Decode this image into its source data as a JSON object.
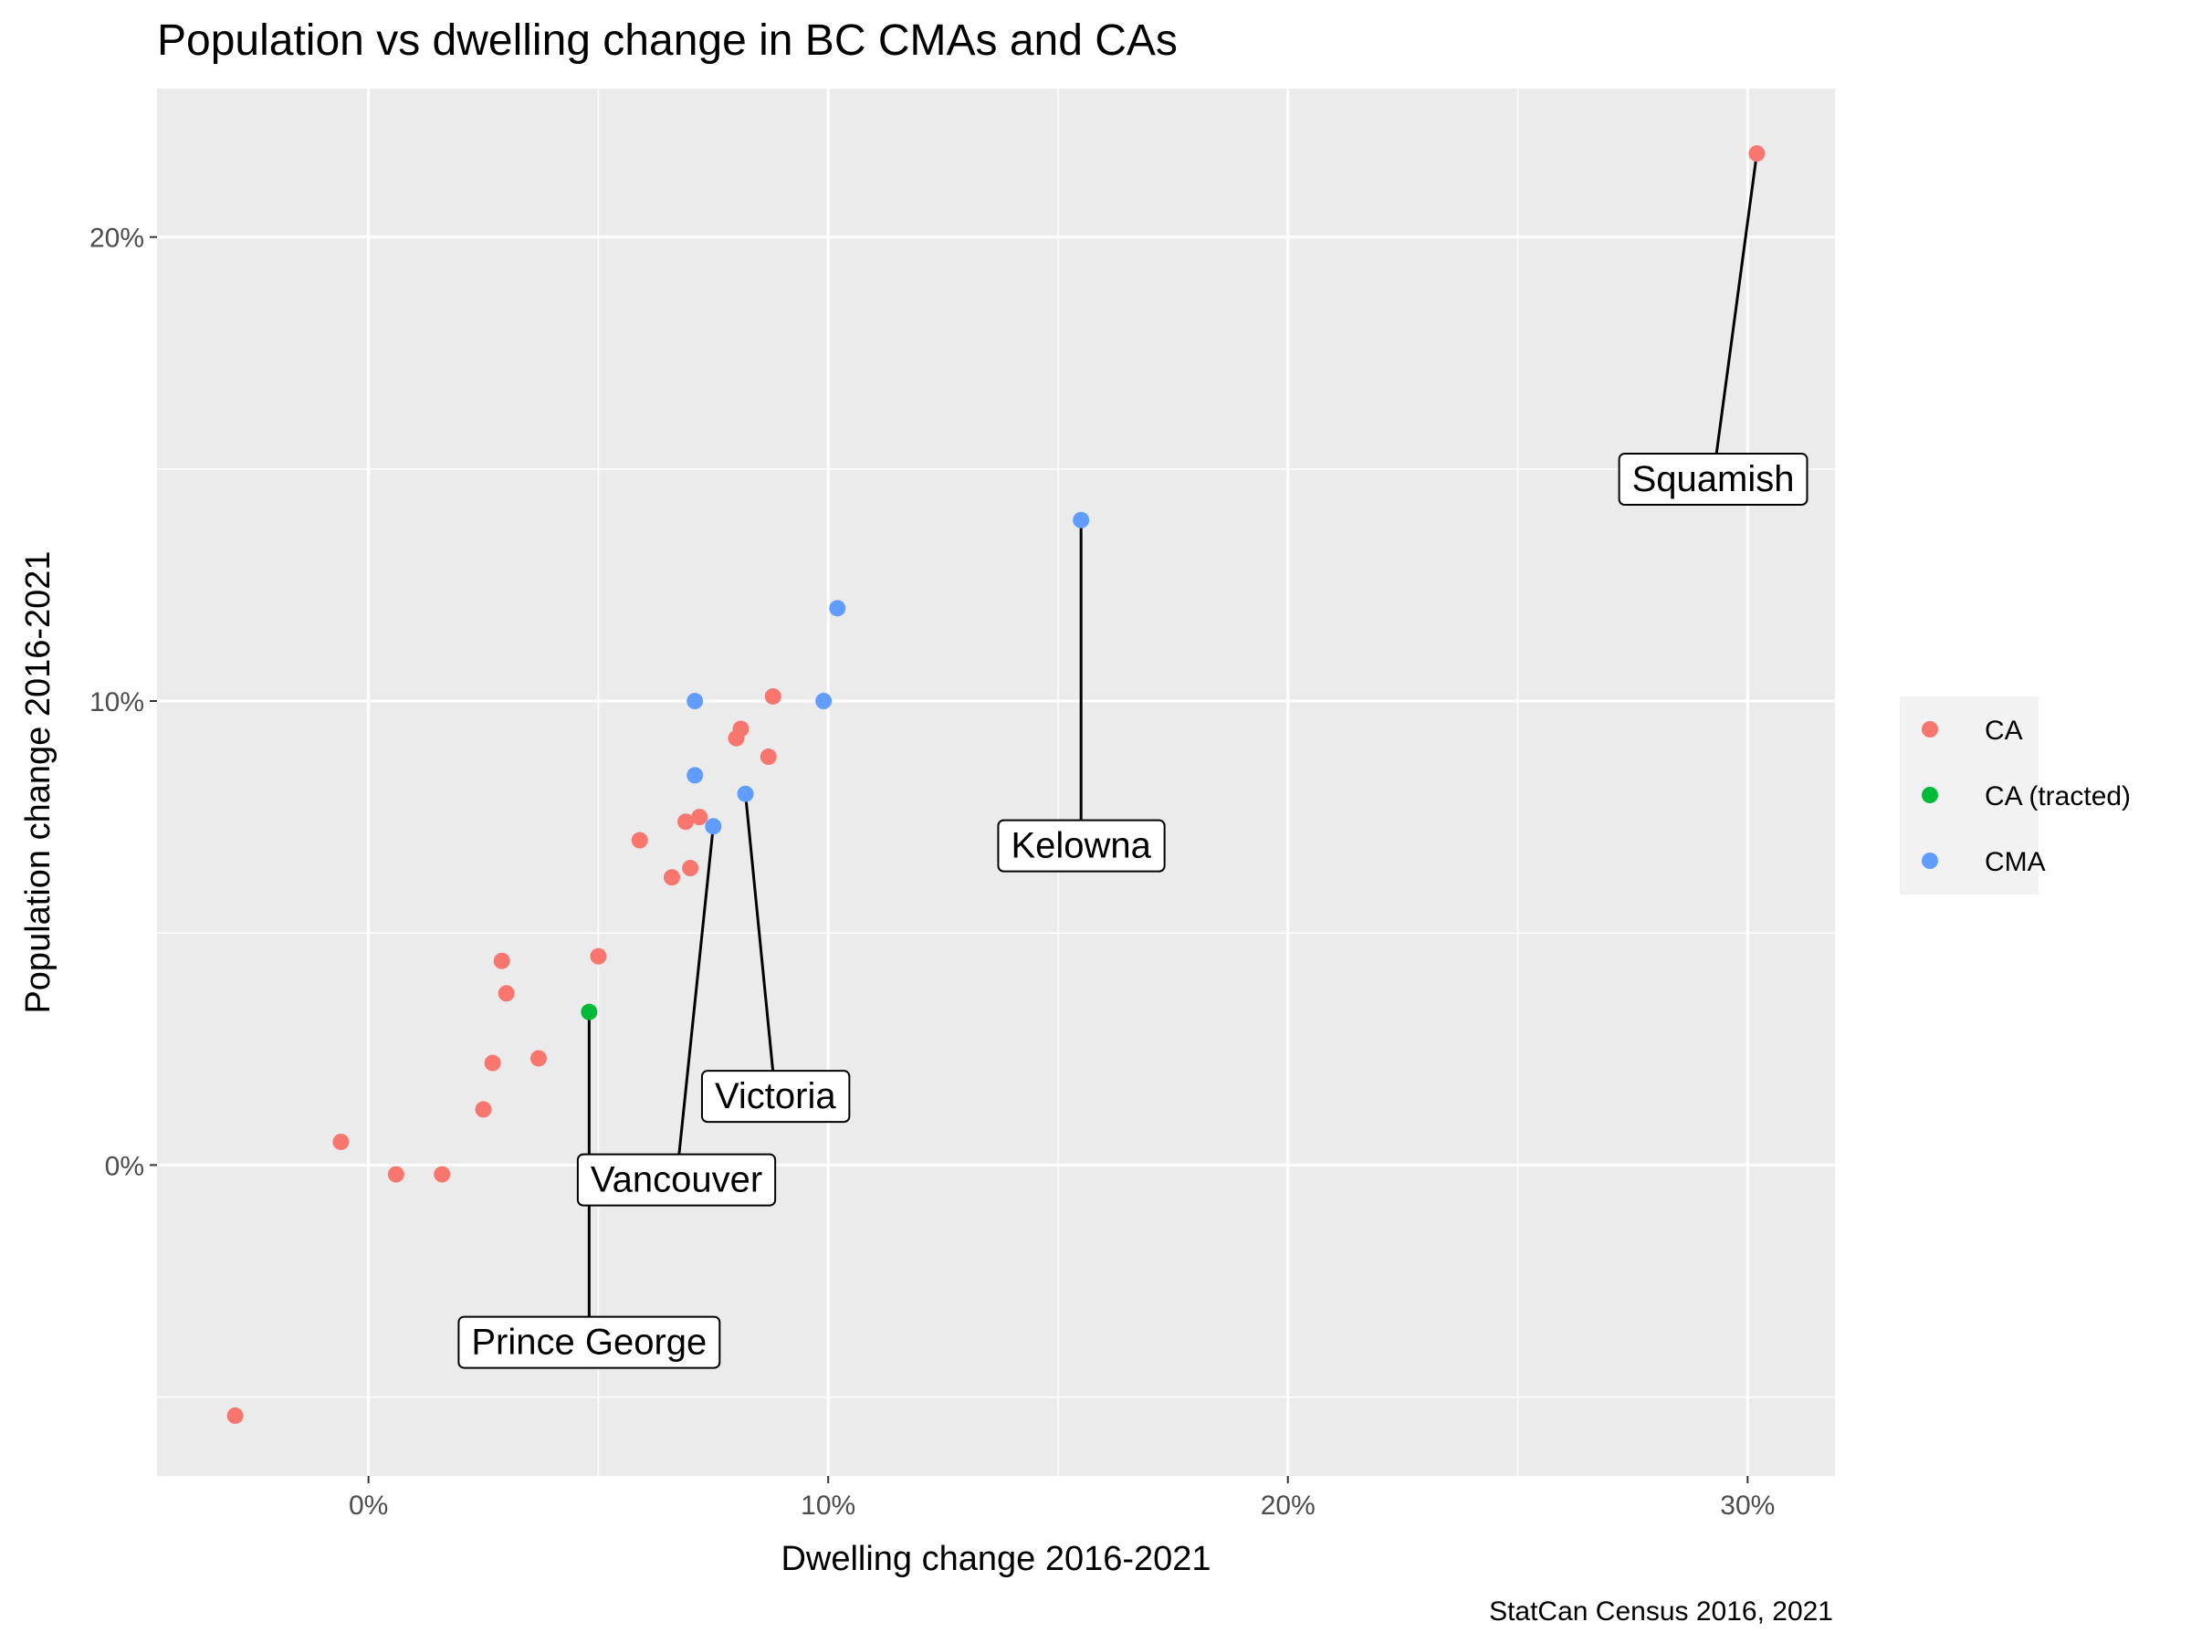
{
  "chart_data": {
    "type": "scatter",
    "title": "Population vs dwelling change in BC CMAs and CAs",
    "xlabel": "Dwelling change 2016-2021",
    "ylabel": "Population change 2016-2021",
    "caption": "StatCan Census 2016, 2021",
    "xlim": [
      -0.046,
      0.319
    ],
    "ylim": [
      -0.067,
      0.232
    ],
    "x_ticks": [
      {
        "value": 0.0,
        "label": "0%"
      },
      {
        "value": 0.1,
        "label": "10%"
      },
      {
        "value": 0.2,
        "label": "20%"
      },
      {
        "value": 0.3,
        "label": "30%"
      }
    ],
    "y_ticks": [
      {
        "value": 0.0,
        "label": "0%"
      },
      {
        "value": 0.1,
        "label": "10%"
      },
      {
        "value": 0.2,
        "label": "20%"
      }
    ],
    "grid": true,
    "legend_position": "right",
    "colors": {
      "panel": "#ebebeb",
      "grid": "#ffffff",
      "CA": "#f8766d",
      "CA (tracted)": "#00ba38",
      "CMA": "#619cff"
    },
    "series": [
      {
        "name": "CA",
        "points": [
          [
            -0.029,
            -0.054
          ],
          [
            -0.006,
            0.005
          ],
          [
            0.006,
            -0.002
          ],
          [
            0.016,
            -0.002
          ],
          [
            0.025,
            0.012
          ],
          [
            0.027,
            0.022
          ],
          [
            0.029,
            0.044
          ],
          [
            0.03,
            0.037
          ],
          [
            0.037,
            0.023
          ],
          [
            0.05,
            0.045
          ],
          [
            0.059,
            0.07
          ],
          [
            0.066,
            0.062
          ],
          [
            0.069,
            0.074
          ],
          [
            0.07,
            0.064
          ],
          [
            0.072,
            0.075
          ],
          [
            0.08,
            0.092
          ],
          [
            0.081,
            0.094
          ],
          [
            0.087,
            0.088
          ],
          [
            0.088,
            0.101
          ],
          [
            0.302,
            0.218
          ]
        ]
      },
      {
        "name": "CA (tracted)",
        "points": [
          [
            0.048,
            0.033
          ]
        ]
      },
      {
        "name": "CMA",
        "points": [
          [
            0.071,
            0.1
          ],
          [
            0.071,
            0.084
          ],
          [
            0.075,
            0.073
          ],
          [
            0.082,
            0.08
          ],
          [
            0.099,
            0.1
          ],
          [
            0.102,
            0.12
          ],
          [
            0.155,
            0.139
          ]
        ]
      }
    ],
    "annotations": [
      {
        "label": "Squamish",
        "point": [
          0.302,
          0.218
        ],
        "label_at": [
          0.2925,
          0.148
        ]
      },
      {
        "label": "Kelowna",
        "point": [
          0.155,
          0.139
        ],
        "label_at": [
          0.155,
          0.069
        ]
      },
      {
        "label": "Victoria",
        "point": [
          0.082,
          0.08
        ],
        "label_at": [
          0.0885,
          0.015
        ]
      },
      {
        "label": "Vancouver",
        "point": [
          0.075,
          0.073
        ],
        "label_at": [
          0.067,
          -0.003
        ]
      },
      {
        "label": "Prince George",
        "point": [
          0.048,
          0.033
        ],
        "label_at": [
          0.048,
          -0.038
        ]
      }
    ]
  }
}
